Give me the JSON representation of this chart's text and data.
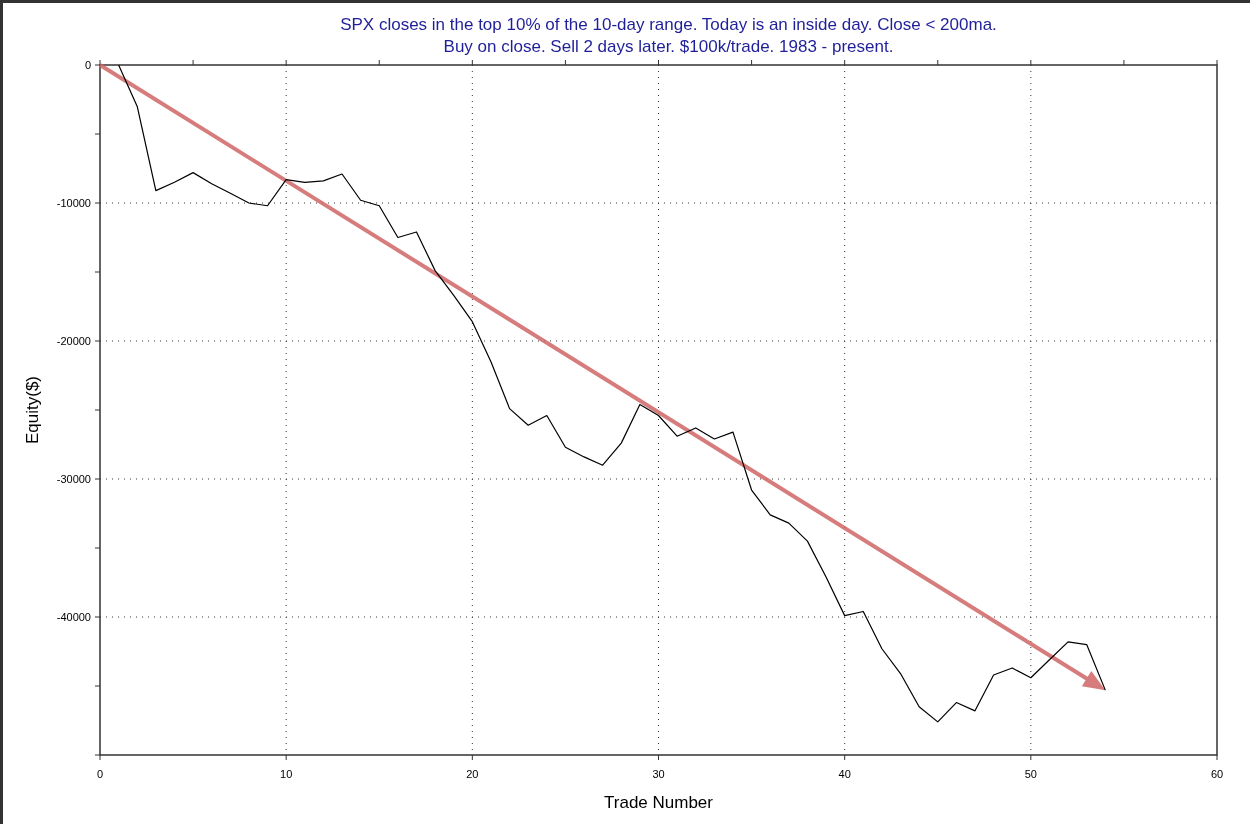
{
  "chart_data": {
    "type": "line",
    "title": "SPX closes in the top 10% of the 10-day range. Today is an inside day. Close < 200ma.",
    "subtitle": "Buy on close. Sell 2 days later. $100k/trade. 1983 - present.",
    "xlabel": "Trade Number",
    "ylabel": "Equity($)",
    "x": [
      1,
      2,
      3,
      4,
      5,
      6,
      7,
      8,
      9,
      10,
      11,
      12,
      13,
      14,
      15,
      16,
      17,
      18,
      19,
      20,
      21,
      22,
      23,
      24,
      25,
      26,
      27,
      28,
      29,
      30,
      31,
      32,
      33,
      34,
      35,
      36,
      37,
      38,
      39,
      40,
      41,
      42,
      43,
      44,
      45,
      46,
      47,
      48,
      49,
      50,
      51,
      52,
      53,
      54
    ],
    "series": [
      {
        "color": "#000000",
        "values": [
          0,
          -3000,
          -9100,
          -8500,
          -7800,
          -8600,
          -9300,
          -10000,
          -10200,
          -8300,
          -8500,
          -8400,
          -7900,
          -9800,
          -10200,
          -12500,
          -12100,
          -14900,
          -16700,
          -18600,
          -21500,
          -24900,
          -26100,
          -25400,
          -27700,
          -28400,
          -29000,
          -27400,
          -24600,
          -25400,
          -26900,
          -26300,
          -27100,
          -26600,
          -30800,
          -32600,
          -33200,
          -34500,
          -37100,
          -39900,
          -39600,
          -42300,
          -44100,
          -46500,
          -47600,
          -46200,
          -46800,
          -44200,
          -43700,
          -44400,
          -43100,
          -41800,
          -42000,
          -45300
        ]
      }
    ],
    "xlim": [
      0,
      60
    ],
    "xticks": [
      0,
      10,
      20,
      30,
      40,
      50,
      60
    ],
    "ylim": [
      -50000,
      0
    ],
    "yticks": [
      {
        "value": -50000,
        "label": null
      },
      -40000,
      -30000,
      -20000,
      -10000,
      0
    ],
    "grid": true,
    "line_style": "solid"
  }
}
